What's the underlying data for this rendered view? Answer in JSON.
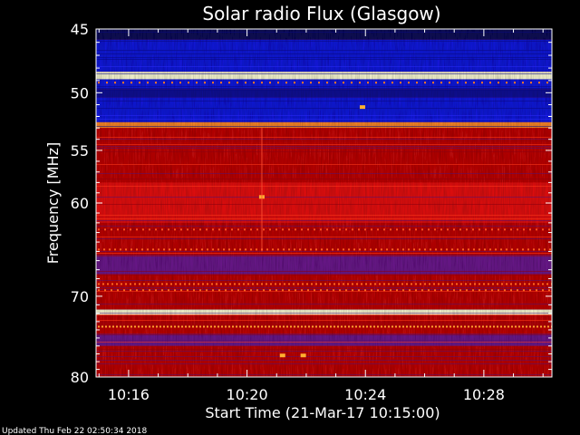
{
  "chart_data": {
    "type": "heatmap",
    "title": "Solar radio Flux (Glasgow)",
    "xlabel": "Start Time (21-Mar-17 10:15:00)",
    "ylabel": "Frequency [MHz]",
    "x_axis": {
      "unit": "minutes after 10:15:00",
      "range_minutes": [
        -0.1,
        15.3
      ],
      "ticks": [
        {
          "label": "10:16",
          "minute": 1
        },
        {
          "label": "10:20",
          "minute": 5
        },
        {
          "label": "10:24",
          "minute": 9
        },
        {
          "label": "10:28",
          "minute": 13
        }
      ]
    },
    "y_axis": {
      "unit": "MHz",
      "scale": "log",
      "range": [
        45,
        80
      ],
      "ticks": [
        45,
        50,
        55,
        60,
        70,
        80
      ],
      "orientation": "increasing downward"
    },
    "intensity_colormap": [
      "#050050",
      "#1010e6",
      "#6a1a9c",
      "#b00000",
      "#e61010",
      "#ff9a30",
      "#ffffe0"
    ],
    "frequency_bands": [
      {
        "from": 45.0,
        "to": 45.8,
        "level": "low"
      },
      {
        "from": 45.8,
        "to": 48.3,
        "level": "blue"
      },
      {
        "from": 48.3,
        "to": 48.9,
        "level": "white-hot"
      },
      {
        "from": 48.9,
        "to": 49.7,
        "level": "blue"
      },
      {
        "from": 49.7,
        "to": 50.4,
        "level": "dark-blue"
      },
      {
        "from": 50.4,
        "to": 52.5,
        "level": "blue"
      },
      {
        "from": 52.5,
        "to": 53.0,
        "level": "orange"
      },
      {
        "from": 53.0,
        "to": 58.0,
        "level": "red"
      },
      {
        "from": 58.0,
        "to": 62.0,
        "level": "bright-red"
      },
      {
        "from": 62.0,
        "to": 65.5,
        "level": "red"
      },
      {
        "from": 65.5,
        "to": 67.5,
        "level": "purple"
      },
      {
        "from": 67.5,
        "to": 71.5,
        "level": "red"
      },
      {
        "from": 71.5,
        "to": 72.2,
        "level": "white-hot"
      },
      {
        "from": 72.2,
        "to": 74.5,
        "level": "red"
      },
      {
        "from": 74.5,
        "to": 76.0,
        "level": "purple"
      },
      {
        "from": 76.0,
        "to": 80.0,
        "level": "red"
      }
    ],
    "features": [
      {
        "kind": "spot",
        "minute": 5.5,
        "freq": 59.4
      },
      {
        "kind": "spot",
        "minute": 8.9,
        "freq": 51.2
      },
      {
        "kind": "spot",
        "minute": 6.2,
        "freq": 77.2
      },
      {
        "kind": "spot",
        "minute": 6.9,
        "freq": 77.2
      },
      {
        "kind": "vertical-streak",
        "minute": 5.5,
        "freq_from": 53,
        "freq_to": 65
      }
    ]
  },
  "footer": {
    "updated": "Updated Thu Feb 22 02:50:34 2018"
  }
}
